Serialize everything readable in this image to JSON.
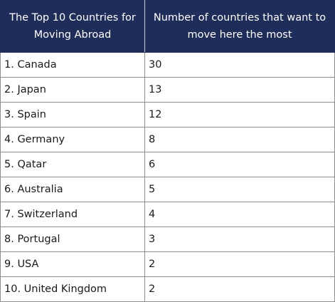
{
  "chart_data": {
    "type": "table",
    "columns": [
      "The Top 10 Countries for Moving Abroad",
      "Number of countries that want to move here the most"
    ],
    "rows": [
      [
        "1. Canada",
        "30"
      ],
      [
        "2. Japan",
        "13"
      ],
      [
        "3. Spain",
        "12"
      ],
      [
        "4. Germany",
        "8"
      ],
      [
        "5. Qatar",
        "6"
      ],
      [
        "6. Australia",
        "5"
      ],
      [
        "7. Switzerland",
        "4"
      ],
      [
        "8. Portugal",
        "3"
      ],
      [
        "9. USA",
        "2"
      ],
      [
        "10. United Kingdom",
        "2"
      ]
    ],
    "categories": [
      "Canada",
      "Japan",
      "Spain",
      "Germany",
      "Qatar",
      "Australia",
      "Switzerland",
      "Portugal",
      "USA",
      "United Kingdom"
    ],
    "values": [
      30,
      13,
      12,
      8,
      6,
      5,
      4,
      3,
      2,
      2
    ]
  },
  "colors": {
    "header_background": "#1f2d5a",
    "header_text": "#ffffff",
    "border": "#8e8e8e"
  }
}
